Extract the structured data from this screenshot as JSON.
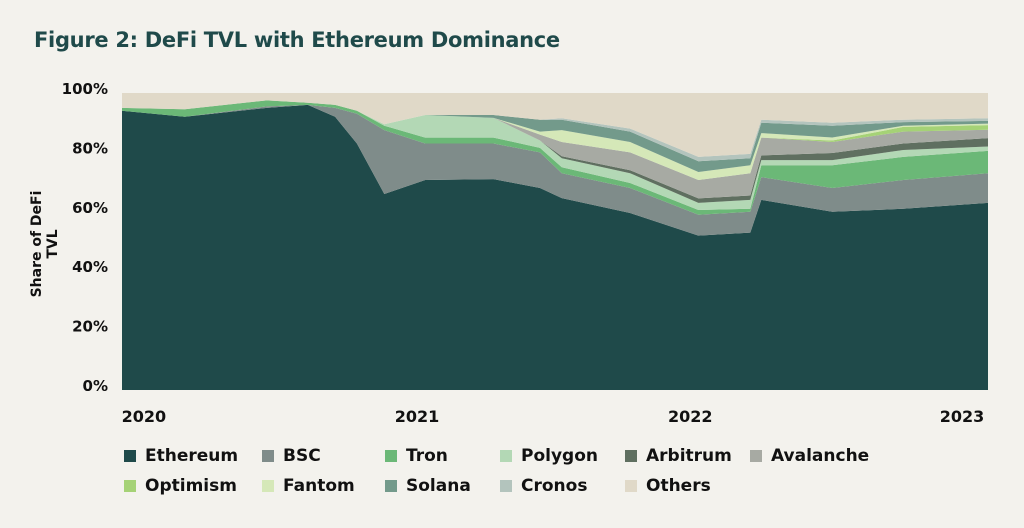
{
  "chart_data": {
    "type": "area",
    "stacked": true,
    "title": "Figure 2: DeFi TVL with Ethereum Dominance",
    "xlabel": "",
    "ylabel": "Share of DeFi TVL",
    "ylim": [
      0,
      100
    ],
    "xlim": [
      2019.92,
      2023.09
    ],
    "yticks": [
      "0%",
      "20%",
      "40%",
      "60%",
      "80%",
      "100%"
    ],
    "ytick_values": [
      0,
      20,
      40,
      60,
      80,
      100
    ],
    "xticks": [
      "2020",
      "2021",
      "2022",
      "2023"
    ],
    "xtick_values": [
      2020.0,
      2021.0,
      2022.0,
      2023.0
    ],
    "grid": false,
    "legend_position": "bottom",
    "x": [
      2019.92,
      2020.15,
      2020.45,
      2020.6,
      2020.7,
      2020.78,
      2020.88,
      2021.03,
      2021.28,
      2021.45,
      2021.53,
      2021.78,
      2022.03,
      2022.22,
      2022.26,
      2022.52,
      2022.78,
      2023.09
    ],
    "series": [
      {
        "name": "Ethereum",
        "color": "#1f4a4a",
        "values": [
          94,
          92,
          95,
          96,
          92,
          83,
          66,
          70.7,
          71,
          68,
          64.6,
          59.6,
          52,
          53,
          64,
          60,
          61,
          63
        ]
      },
      {
        "name": "BSC",
        "color": "#7f8c8a",
        "values": [
          0,
          0,
          0.5,
          0,
          3,
          10,
          21.5,
          12.3,
          12,
          12,
          8.4,
          8.4,
          7,
          7,
          7.7,
          8,
          9.7,
          10
        ]
      },
      {
        "name": "Tron",
        "color": "#6bb877",
        "values": [
          1,
          2.5,
          2,
          0.7,
          1,
          1,
          1.5,
          2,
          2,
          1.5,
          2,
          1.7,
          1.6,
          1,
          4,
          7.7,
          7.8,
          7.5
        ]
      },
      {
        "name": "Polygon",
        "color": "#b3d8b5",
        "values": [
          0,
          0,
          0,
          0,
          0,
          0,
          0.5,
          7.6,
          6.6,
          2.5,
          3,
          3.3,
          2.4,
          3,
          1.7,
          1.7,
          2.3,
          1.5
        ]
      },
      {
        "name": "Arbitrum",
        "color": "#5f6f60",
        "values": [
          0,
          0,
          0,
          0,
          0,
          0,
          0,
          0,
          0,
          0,
          0.7,
          1,
          1.5,
          1.5,
          1.6,
          2.4,
          2.2,
          2.8
        ]
      },
      {
        "name": "Avalanche",
        "color": "#a7aaa3",
        "values": [
          0,
          0,
          0,
          0,
          0,
          0,
          0,
          0,
          0,
          2,
          4.8,
          6,
          6.2,
          7.5,
          6,
          3.7,
          4,
          2.8
        ]
      },
      {
        "name": "Optimism",
        "color": "#a5d276",
        "values": [
          0,
          0,
          0,
          0,
          0,
          0,
          0,
          0,
          0,
          0,
          0,
          0,
          0,
          0,
          0,
          0.5,
          1.6,
          1.6
        ]
      },
      {
        "name": "Fantom",
        "color": "#d5e8b8",
        "values": [
          0,
          0,
          0,
          0,
          0,
          0,
          0,
          0,
          0,
          1,
          4,
          3.5,
          2.7,
          2.7,
          1.5,
          1,
          0.4,
          0.5
        ]
      },
      {
        "name": "Solana",
        "color": "#739a8b",
        "values": [
          0,
          0,
          0,
          0,
          0,
          0,
          0,
          0,
          1,
          4,
          3.5,
          3.5,
          3.6,
          2.3,
          3.5,
          4,
          1.2,
          0.9
        ]
      },
      {
        "name": "Cronos",
        "color": "#b3c4bd",
        "values": [
          0,
          0,
          0,
          0,
          0,
          0,
          0,
          0,
          0,
          0,
          0.5,
          1,
          1.5,
          1.5,
          1,
          1,
          0.8,
          0.9
        ]
      },
      {
        "name": "Others",
        "color": "#e0d9c8",
        "values": [
          5,
          5.5,
          2.5,
          3.3,
          4,
          6,
          10.5,
          7.4,
          7.4,
          9,
          8.5,
          12,
          21.5,
          20.5,
          9,
          10,
          9,
          8.5
        ]
      }
    ]
  }
}
